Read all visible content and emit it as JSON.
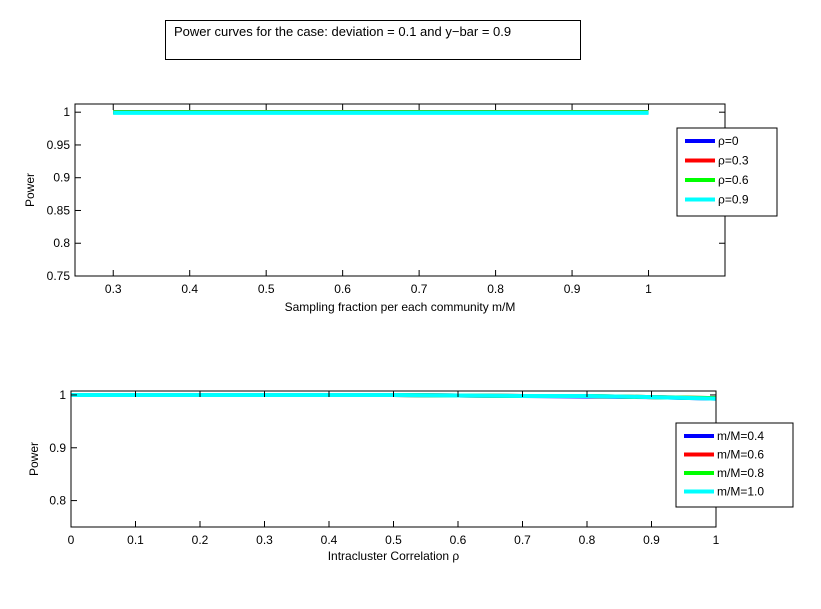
{
  "figure_title": "Power curves for the case: deviation = 0.1 and y−bar = 0.9",
  "chart_data": [
    {
      "type": "line",
      "xlabel": "Sampling fraction per each community m/M",
      "ylabel": "Power",
      "xlim": [
        0.25,
        1.1
      ],
      "ylim": [
        0.75,
        1.0125
      ],
      "xticks": [
        0.3,
        0.4,
        0.5,
        0.6,
        0.7,
        0.8,
        0.9,
        1
      ],
      "xtick_labels": [
        "0.3",
        "0.4",
        "0.5",
        "0.6",
        "0.7",
        "0.8",
        "0.9",
        "1"
      ],
      "yticks": [
        0.75,
        0.8,
        0.85,
        0.9,
        0.95,
        1
      ],
      "ytick_labels": [
        "0.75",
        "0.8",
        "0.85",
        "0.9",
        "0.95",
        "1"
      ],
      "legend_position": "outside-right",
      "x": [
        0.3,
        0.4,
        0.5,
        0.6,
        0.7,
        0.8,
        0.9,
        1.0
      ],
      "series": [
        {
          "name": "ρ=0",
          "color": "#0000ff",
          "values": [
            1,
            1,
            1,
            1,
            1,
            1,
            1,
            1
          ]
        },
        {
          "name": "ρ=0.3",
          "color": "#ff0000",
          "values": [
            1,
            1,
            1,
            1,
            1,
            1,
            1,
            1
          ]
        },
        {
          "name": "ρ=0.6",
          "color": "#00ff00",
          "values": [
            1,
            1,
            1,
            1,
            1,
            1,
            1,
            1
          ]
        },
        {
          "name": "ρ=0.9",
          "color": "#00ffff",
          "values": [
            0.999,
            0.999,
            0.999,
            0.999,
            0.999,
            0.999,
            0.999,
            0.999
          ]
        }
      ]
    },
    {
      "type": "line",
      "xlabel": "Intracluster Correlation ρ",
      "ylabel": "Power",
      "xlim": [
        0,
        1
      ],
      "ylim": [
        0.75,
        1.0075
      ],
      "xticks": [
        0,
        0.1,
        0.2,
        0.3,
        0.4,
        0.5,
        0.6,
        0.7,
        0.8,
        0.9,
        1
      ],
      "xtick_labels": [
        "0",
        "0.1",
        "0.2",
        "0.3",
        "0.4",
        "0.5",
        "0.6",
        "0.7",
        "0.8",
        "0.9",
        "1"
      ],
      "yticks": [
        0.8,
        0.9,
        1
      ],
      "ytick_labels": [
        "0.8",
        "0.9",
        "1"
      ],
      "legend_position": "outside-right",
      "x": [
        0,
        0.1,
        0.2,
        0.3,
        0.4,
        0.5,
        0.6,
        0.7,
        0.8,
        0.9,
        1.0
      ],
      "series": [
        {
          "name": "m/M=0.4",
          "color": "#0000ff",
          "values": [
            1,
            1,
            1,
            1,
            1,
            1,
            0.999,
            0.998,
            0.997,
            0.996,
            0.993
          ]
        },
        {
          "name": "m/M=0.6",
          "color": "#ff0000",
          "values": [
            1,
            1,
            1,
            1,
            1,
            1,
            0.999,
            0.998,
            0.998,
            0.996,
            0.994
          ]
        },
        {
          "name": "m/M=0.8",
          "color": "#00ff00",
          "values": [
            1,
            1,
            1,
            1,
            1,
            1,
            0.999,
            0.998,
            0.998,
            0.996,
            0.994
          ]
        },
        {
          "name": "m/M=1.0",
          "color": "#00ffff",
          "values": [
            1,
            1,
            1,
            1,
            1,
            1,
            0.999,
            0.998,
            0.998,
            0.996,
            0.993
          ]
        }
      ]
    }
  ]
}
